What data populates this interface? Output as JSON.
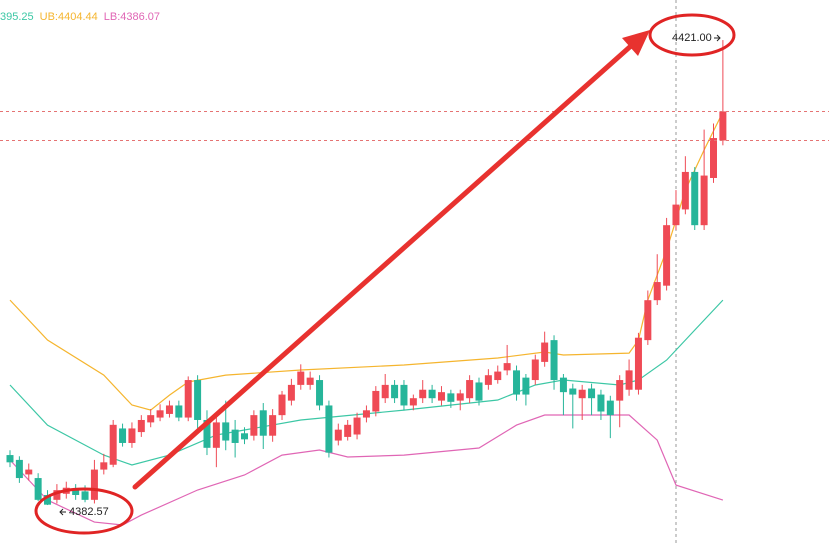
{
  "chart_data": {
    "type": "candlestick",
    "up_color": "#ef4a55",
    "down_color": "#26b59a",
    "ylim": [
      4379.35,
      4424.31
    ],
    "open": [
      4386.7,
      4386.3,
      4385.1,
      4384.8,
      4383.4,
      4383.0,
      4383.5,
      4383.9,
      4383.7,
      4383.0,
      4385.5,
      4385.9,
      4388.9,
      4387.7,
      4388.6,
      4389.4,
      4389.8,
      4390.1,
      4390.8,
      4389.8,
      4392.9,
      4389.6,
      4387.3,
      4389.4,
      4388.8,
      4388.5,
      4388.3,
      4390.4,
      4388.3,
      4390.0,
      4391.2,
      4392.5,
      4392.5,
      4392.9,
      4390.8,
      4387.9,
      4388.2,
      4388.4,
      4389.8,
      4390.3,
      4391.4,
      4392.5,
      4392.5,
      4390.8,
      4391.4,
      4392.1,
      4391.2,
      4391.8,
      4391.2,
      4391.4,
      4392.7,
      4392.5,
      4392.9,
      4393.7,
      4393.7,
      4393.1,
      4392.9,
      4394.4,
      4396.2,
      4393.1,
      4392.2,
      4391.4,
      4392.2,
      4391.7,
      4391.2,
      4391.2,
      4392.1,
      4392.1,
      4396.2,
      4399.5,
      4400.7,
      4405.7,
      4407.0,
      4410.1,
      4405.7,
      4409.6,
      4412.7
    ],
    "high": [
      4387.1,
      4386.6,
      4386.0,
      4385.2,
      4383.8,
      4384.3,
      4384.5,
      4384.3,
      4384.2,
      4386.3,
      4386.8,
      4389.6,
      4389.3,
      4389.4,
      4390.0,
      4390.5,
      4390.9,
      4391.2,
      4391.2,
      4393.2,
      4393.3,
      4390.4,
      4390.0,
      4391.2,
      4389.6,
      4389.0,
      4390.4,
      4391.0,
      4390.5,
      4392.0,
      4393.0,
      4394.2,
      4393.6,
      4393.3,
      4391.2,
      4389.3,
      4389.6,
      4390.2,
      4390.8,
      4392.4,
      4393.4,
      4392.9,
      4392.9,
      4391.7,
      4392.9,
      4392.5,
      4392.4,
      4392.1,
      4392.1,
      4393.3,
      4393.1,
      4393.8,
      4394.1,
      4395.8,
      4394.1,
      4393.4,
      4395.0,
      4396.9,
      4396.6,
      4393.4,
      4392.6,
      4392.5,
      4392.6,
      4392.1,
      4391.6,
      4393.3,
      4394.6,
      4396.8,
      4400.3,
      4403.3,
      4406.3,
      4408.6,
      4411.4,
      4410.5,
      4413.6,
      4414.1,
      4421.0
    ],
    "low": [
      4385.7,
      4384.4,
      4384.6,
      4382.9,
      4382.57,
      4382.7,
      4383.1,
      4383.0,
      4382.8,
      4382.7,
      4385.1,
      4385.7,
      4387.4,
      4387.3,
      4388.2,
      4389.0,
      4389.5,
      4389.8,
      4389.5,
      4389.5,
      4388.9,
      4386.7,
      4385.7,
      4387.1,
      4386.5,
      4387.6,
      4387.9,
      4387.2,
      4387.8,
      4389.6,
      4390.8,
      4392.1,
      4392.1,
      4390.4,
      4386.5,
      4387.5,
      4387.9,
      4388.0,
      4389.4,
      4389.9,
      4391.0,
      4391.0,
      4390.4,
      4390.4,
      4391.0,
      4391.0,
      4390.8,
      4390.6,
      4390.4,
      4391.0,
      4390.8,
      4392.1,
      4392.6,
      4393.3,
      4391.2,
      4390.8,
      4392.5,
      4394.0,
      4392.1,
      4390.0,
      4388.9,
      4389.6,
      4390.0,
      4389.6,
      4388.1,
      4389.0,
      4391.6,
      4391.7,
      4395.8,
      4399.1,
      4400.3,
      4405.3,
      4406.6,
      4405.3,
      4405.3,
      4409.2,
      4412.3
    ],
    "close": [
      4386.1,
      4384.8,
      4385.5,
      4383.0,
      4382.6,
      4383.8,
      4384.0,
      4383.4,
      4383.0,
      4385.5,
      4386.1,
      4389.2,
      4387.7,
      4388.9,
      4389.6,
      4390.0,
      4390.4,
      4390.8,
      4389.8,
      4392.9,
      4389.6,
      4387.3,
      4389.4,
      4387.9,
      4387.7,
      4388.0,
      4390.0,
      4388.3,
      4390.0,
      4391.7,
      4392.5,
      4393.6,
      4393.1,
      4390.8,
      4386.9,
      4388.8,
      4389.2,
      4389.8,
      4390.4,
      4392.0,
      4392.5,
      4391.4,
      4390.8,
      4391.4,
      4392.1,
      4391.4,
      4391.9,
      4391.1,
      4391.8,
      4392.9,
      4391.2,
      4393.3,
      4393.6,
      4394.3,
      4391.7,
      4391.7,
      4394.6,
      4396.0,
      4392.9,
      4391.9,
      4391.7,
      4392.1,
      4391.4,
      4390.3,
      4390.0,
      4392.9,
      4393.7,
      4396.4,
      4399.5,
      4401.0,
      4405.7,
      4407.4,
      4410.1,
      4405.7,
      4409.8,
      4412.9,
      4415.1
    ],
    "series": [
      {
        "name": "395.25",
        "color": "#3cc7a5",
        "x": [
          0,
          4,
          10,
          13,
          17,
          22,
          31,
          42,
          52,
          56,
          59,
          65,
          67,
          70,
          73,
          76
        ],
        "values": [
          4392.49,
          4389.18,
          4386.7,
          4385.88,
          4386.7,
          4388.36,
          4389.6,
          4390.42,
          4391.25,
          4392.49,
          4392.9,
          4392.49,
          4392.9,
          4394.55,
          4397.03,
          4399.51
        ]
      },
      {
        "name": "UB:4404.44",
        "color": "#f5b52e",
        "x": [
          0,
          4,
          10,
          13,
          15,
          17,
          19,
          23,
          31,
          42,
          52,
          57,
          59,
          66,
          67,
          68,
          70,
          72,
          74,
          76
        ],
        "values": [
          4399.51,
          4396.21,
          4393.31,
          4390.84,
          4390.42,
          4391.66,
          4392.74,
          4393.31,
          4393.73,
          4394.14,
          4394.72,
          4395.22,
          4394.97,
          4395.13,
          4396.21,
          4399.51,
          4403.65,
          4408.6,
          4411.91,
          4415.05
        ]
      },
      {
        "name": "LB:4386.07",
        "color": "#e066b5",
        "x": [
          0,
          4,
          9,
          12,
          14,
          20,
          25,
          29,
          33,
          36,
          42,
          50,
          54,
          57,
          63,
          66,
          69,
          71,
          76
        ],
        "values": [
          4386.29,
          4382.98,
          4381.16,
          4380.92,
          4381.74,
          4383.81,
          4385.05,
          4386.7,
          4387.12,
          4386.54,
          4386.7,
          4387.28,
          4389.18,
          4390.01,
          4390.01,
          4390.01,
          4387.94,
          4384.22,
          4382.98
        ]
      }
    ],
    "high_label": "4421.00",
    "low_label": "4382.57"
  }
}
